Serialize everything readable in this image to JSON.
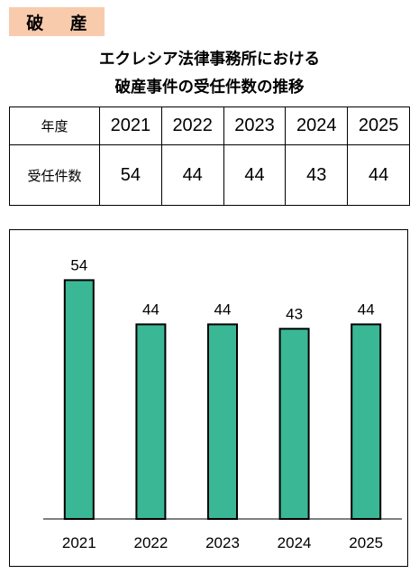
{
  "header": {
    "badge": "破 産",
    "title_line1": "エクレシア法律事務所における",
    "title_line2": "破産事件の受任件数の推移"
  },
  "table": {
    "row1_label": "年度",
    "row2_label": "受任件数",
    "years": [
      "2021",
      "2022",
      "2023",
      "2024",
      "2025"
    ],
    "counts": [
      "54",
      "44",
      "44",
      "43",
      "44"
    ]
  },
  "chart_data": {
    "type": "bar",
    "categories": [
      "2021",
      "2022",
      "2023",
      "2024",
      "2025"
    ],
    "values": [
      54,
      44,
      44,
      43,
      44
    ],
    "title": "",
    "xlabel": "",
    "ylabel": "",
    "ylim": [
      0,
      60
    ],
    "grid": false,
    "legend": "none",
    "bar_color": "#3ab795",
    "bar_border_color": "#000000"
  }
}
